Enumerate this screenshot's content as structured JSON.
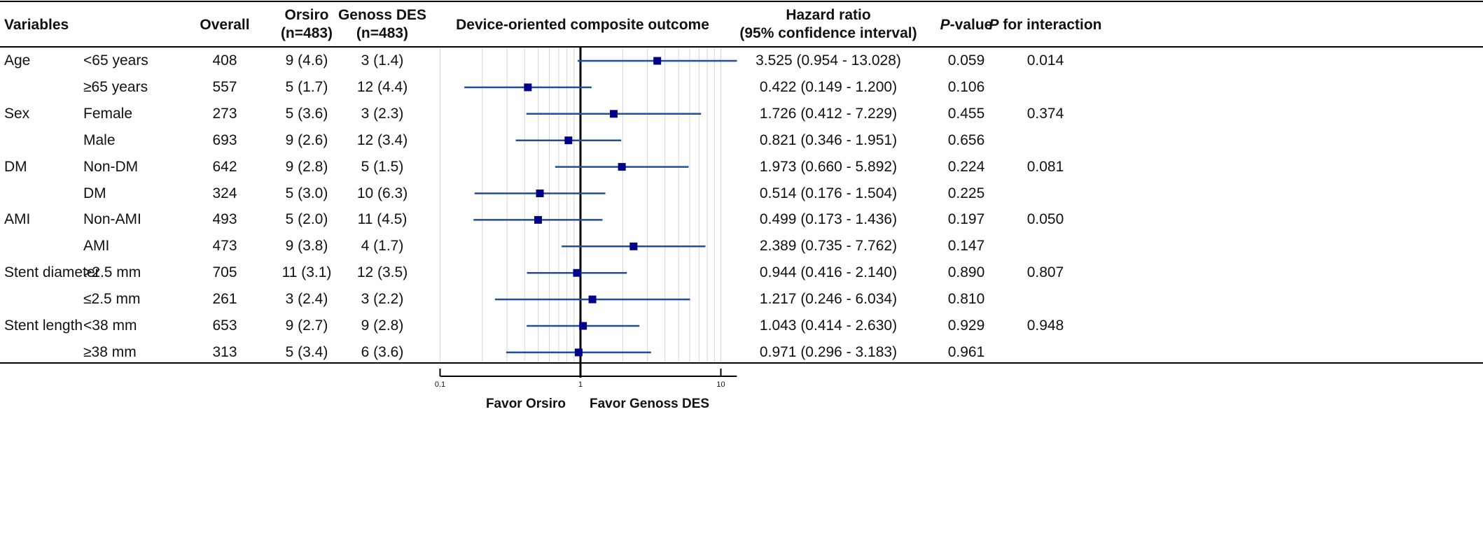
{
  "headers": {
    "variables": "Variables",
    "overall": "Overall",
    "orsiro": [
      "Orsiro",
      "(n=483)"
    ],
    "genoss": [
      "Genoss DES",
      "(n=483)"
    ],
    "outcome": "Device-oriented composite outcome",
    "hr": [
      "Hazard ratio",
      "(95% confidence interval)"
    ],
    "p_prefix": "P",
    "p_suffix": "-value",
    "pint_prefix": "P",
    "pint_suffix": " for interaction"
  },
  "rows": [
    {
      "variable": "Age",
      "subgroup": "<65 years",
      "overall": "408",
      "orsiro": "9 (4.6)",
      "genoss": "3 (1.4)",
      "hr_text": "3.525 (0.954 - 13.028)",
      "p": "0.059",
      "p_int": "0.014"
    },
    {
      "variable": "",
      "subgroup": "≥65 years",
      "overall": "557",
      "orsiro": "5 (1.7)",
      "genoss": "12 (4.4)",
      "hr_text": "0.422 (0.149 - 1.200)",
      "p": "0.106",
      "p_int": ""
    },
    {
      "variable": "Sex",
      "subgroup": "Female",
      "overall": "273",
      "orsiro": "5 (3.6)",
      "genoss": "3 (2.3)",
      "hr_text": "1.726 (0.412 - 7.229)",
      "p": "0.455",
      "p_int": "0.374"
    },
    {
      "variable": "",
      "subgroup": "Male",
      "overall": "693",
      "orsiro": "9 (2.6)",
      "genoss": "12 (3.4)",
      "hr_text": "0.821 (0.346 - 1.951)",
      "p": "0.656",
      "p_int": ""
    },
    {
      "variable": "DM",
      "subgroup": "Non-DM",
      "overall": "642",
      "orsiro": "9 (2.8)",
      "genoss": "5 (1.5)",
      "hr_text": "1.973 (0.660 - 5.892)",
      "p": "0.224",
      "p_int": "0.081"
    },
    {
      "variable": "",
      "subgroup": "DM",
      "overall": "324",
      "orsiro": "5 (3.0)",
      "genoss": "10 (6.3)",
      "hr_text": "0.514 (0.176 - 1.504)",
      "p": "0.225",
      "p_int": ""
    },
    {
      "variable": "AMI",
      "subgroup": "Non-AMI",
      "overall": "493",
      "orsiro": "5 (2.0)",
      "genoss": "11 (4.5)",
      "hr_text": "0.499 (0.173 - 1.436)",
      "p": "0.197",
      "p_int": "0.050"
    },
    {
      "variable": "",
      "subgroup": "AMI",
      "overall": "473",
      "orsiro": "9 (3.8)",
      "genoss": "4 (1.7)",
      "hr_text": "2.389 (0.735 - 7.762)",
      "p": "0.147",
      "p_int": ""
    },
    {
      "variable": "Stent diameter",
      "subgroup": ">2.5 mm",
      "overall": "705",
      "orsiro": "11 (3.1)",
      "genoss": "12 (3.5)",
      "hr_text": "0.944 (0.416 - 2.140)",
      "p": "0.890",
      "p_int": "0.807"
    },
    {
      "variable": "",
      "subgroup": "≤2.5 mm",
      "overall": "261",
      "orsiro": "3 (2.4)",
      "genoss": "3 (2.2)",
      "hr_text": "1.217 (0.246 - 6.034)",
      "p": "0.810",
      "p_int": ""
    },
    {
      "variable": "Stent length",
      "subgroup": "<38 mm",
      "overall": "653",
      "orsiro": "9 (2.7)",
      "genoss": "9 (2.8)",
      "hr_text": "1.043 (0.414 - 2.630)",
      "p": "0.929",
      "p_int": "0.948"
    },
    {
      "variable": "",
      "subgroup": "≥38 mm",
      "overall": "313",
      "orsiro": "5 (3.4)",
      "genoss": "6 (3.6)",
      "hr_text": "0.971 (0.296 - 3.183)",
      "p": "0.961",
      "p_int": ""
    }
  ],
  "chart_data": {
    "type": "forest",
    "scale": "log",
    "xlim": [
      0.1,
      13
    ],
    "ticks": [
      0.1,
      1,
      10
    ],
    "tick_labels": [
      "0.1",
      "1",
      "10"
    ],
    "reference": 1,
    "grid": true,
    "favor_left": "Favor Orsiro",
    "favor_right": "Favor Genoss DES",
    "series": [
      {
        "hr": 3.525,
        "lo": 0.954,
        "hi": 13.028
      },
      {
        "hr": 0.422,
        "lo": 0.149,
        "hi": 1.2
      },
      {
        "hr": 1.726,
        "lo": 0.412,
        "hi": 7.229
      },
      {
        "hr": 0.821,
        "lo": 0.346,
        "hi": 1.951
      },
      {
        "hr": 1.973,
        "lo": 0.66,
        "hi": 5.892
      },
      {
        "hr": 0.514,
        "lo": 0.176,
        "hi": 1.504
      },
      {
        "hr": 0.499,
        "lo": 0.173,
        "hi": 1.436
      },
      {
        "hr": 2.389,
        "lo": 0.735,
        "hi": 7.762
      },
      {
        "hr": 0.944,
        "lo": 0.416,
        "hi": 2.14
      },
      {
        "hr": 1.217,
        "lo": 0.246,
        "hi": 6.034
      },
      {
        "hr": 1.043,
        "lo": 0.414,
        "hi": 2.63
      },
      {
        "hr": 0.971,
        "lo": 0.296,
        "hi": 3.183
      }
    ],
    "colors": {
      "marker": "#00008b",
      "line": "#1f4e9c",
      "grid": "#d4d4d4",
      "reference": "#000000"
    }
  }
}
